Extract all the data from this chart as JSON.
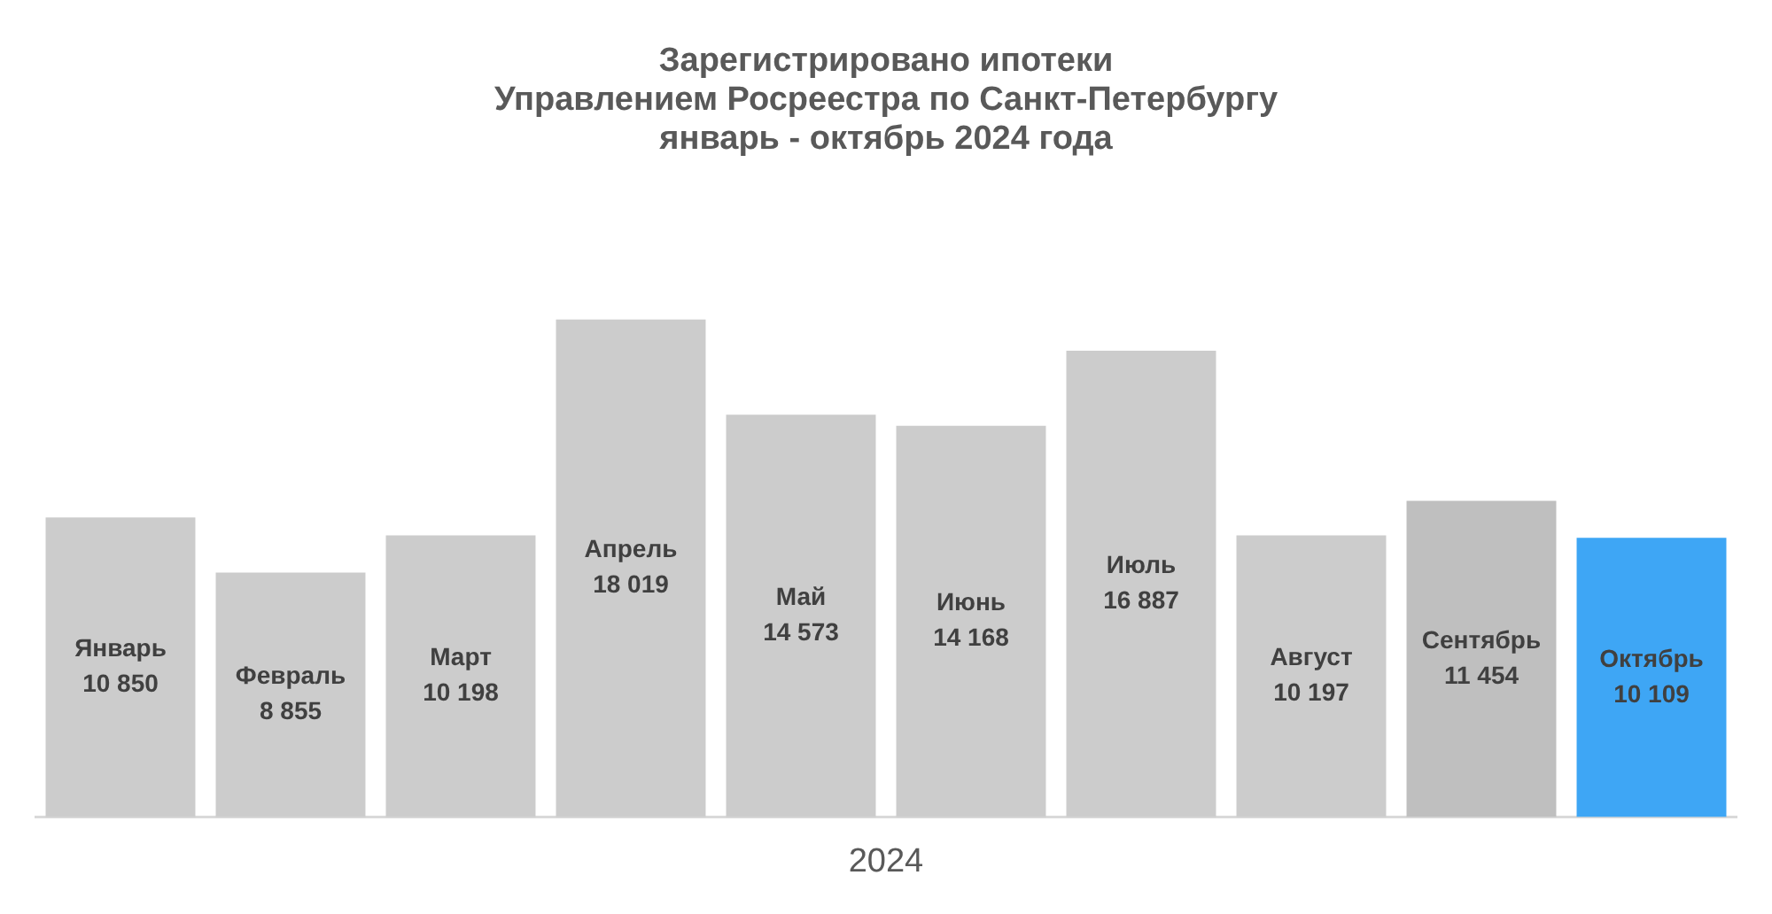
{
  "chart_data": {
    "type": "bar",
    "title": "Зарегистрировано ипотеки\nУправлением Росреестра по Санкт-Петербургу\nянварь - октябрь 2024 года",
    "xlabel": "2024",
    "categories": [
      "Январь",
      "Февраль",
      "Март",
      "Апрель",
      "Май",
      "Июнь",
      "Июль",
      "Август",
      "Сентябрь",
      "Октябрь"
    ],
    "values": [
      10850,
      8855,
      10198,
      18019,
      14573,
      14168,
      16887,
      10197,
      11454,
      10109
    ],
    "value_labels": [
      "10 850",
      "8 855",
      "10 198",
      "18 019",
      "14 573",
      "14 168",
      "16 887",
      "10 197",
      "11 454",
      "10 109"
    ],
    "colors": [
      "#cccccc",
      "#cccccc",
      "#cccccc",
      "#cccccc",
      "#cccccc",
      "#cccccc",
      "#cccccc",
      "#cccccc",
      "#bfbfbf",
      "#3ea6f5"
    ],
    "grid": false,
    "legend": false
  }
}
